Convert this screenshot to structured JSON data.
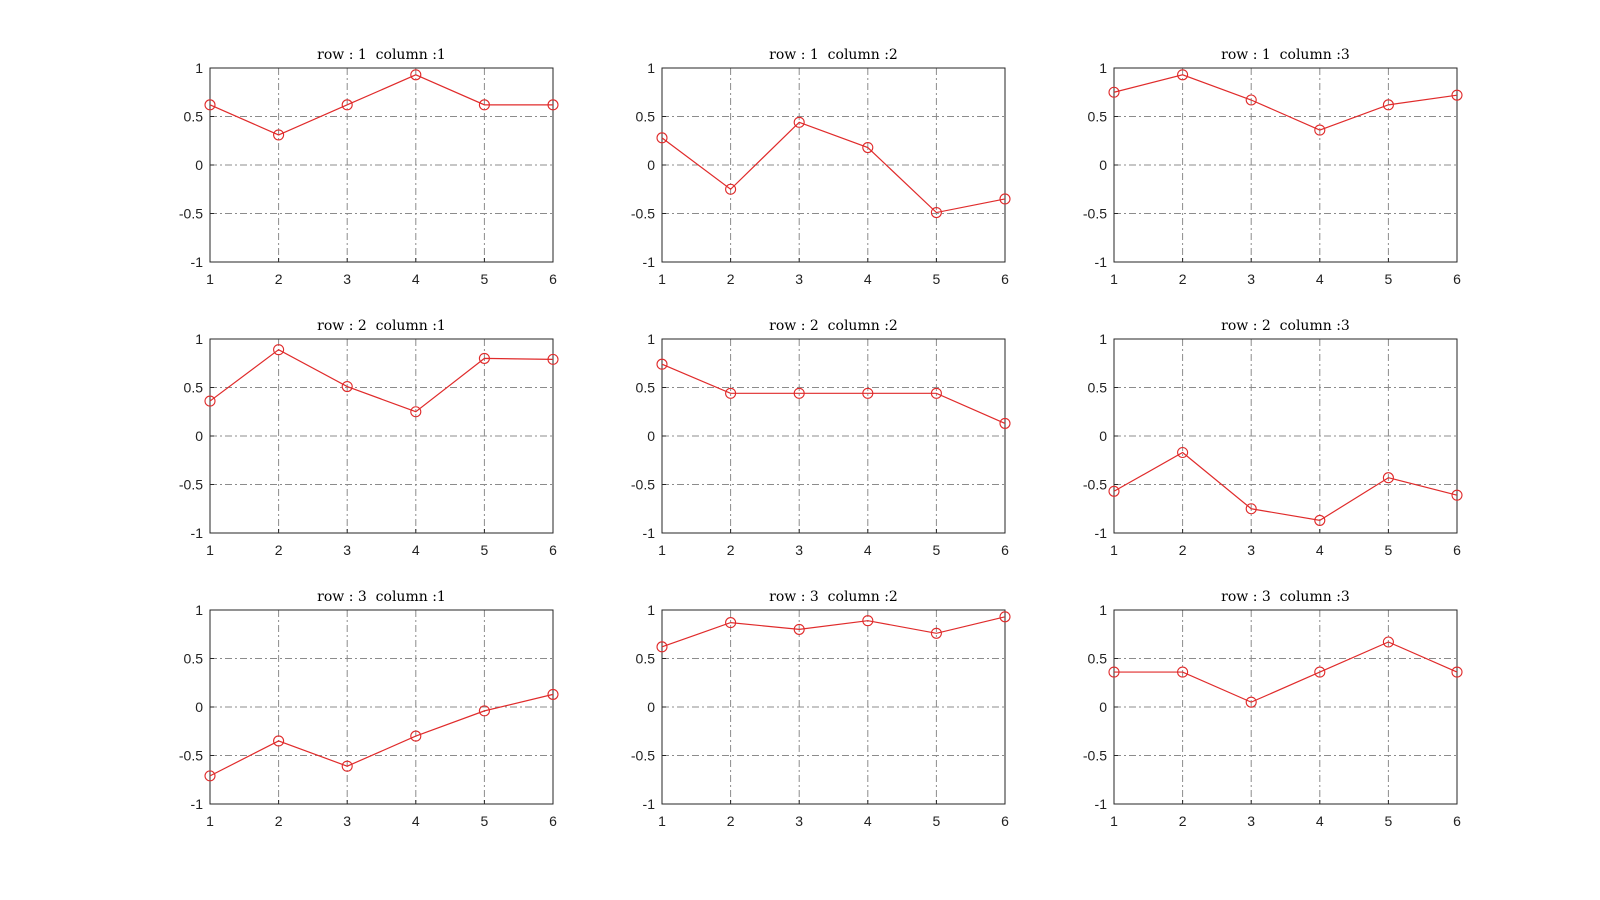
{
  "figure": {
    "series_color": "#e02b2b",
    "grid_color": "#8c8c8c",
    "axes_color": "#262626"
  },
  "chart_data": [
    {
      "type": "line",
      "title": "row : 1  column :1",
      "x": [
        1,
        2,
        3,
        4,
        5,
        6
      ],
      "values": [
        0.62,
        0.31,
        0.62,
        0.93,
        0.62,
        0.62
      ],
      "xlim": [
        1,
        6
      ],
      "ylim": [
        -1,
        1
      ],
      "xticks": [
        "1",
        "2",
        "3",
        "4",
        "5",
        "6"
      ],
      "yticks": [
        "1",
        "0.5",
        "0",
        "-0.5",
        "-1"
      ],
      "marker": "circle",
      "grid": true
    },
    {
      "type": "line",
      "title": "row : 2  column :1",
      "x": [
        1,
        2,
        3,
        4,
        5,
        6
      ],
      "values": [
        0.36,
        0.89,
        0.51,
        0.25,
        0.8,
        0.79
      ],
      "xlim": [
        1,
        6
      ],
      "ylim": [
        -1,
        1
      ],
      "xticks": [
        "1",
        "2",
        "3",
        "4",
        "5",
        "6"
      ],
      "yticks": [
        "1",
        "0.5",
        "0",
        "-0.5",
        "-1"
      ],
      "marker": "circle",
      "grid": true
    },
    {
      "type": "line",
      "title": "row : 3  column :1",
      "x": [
        1,
        2,
        3,
        4,
        5,
        6
      ],
      "values": [
        -0.71,
        -0.35,
        -0.61,
        -0.3,
        -0.04,
        0.13
      ],
      "xlim": [
        1,
        6
      ],
      "ylim": [
        -1,
        1
      ],
      "xticks": [
        "1",
        "2",
        "3",
        "4",
        "5",
        "6"
      ],
      "yticks": [
        "1",
        "0.5",
        "0",
        "-0.5",
        "-1"
      ],
      "marker": "circle",
      "grid": true
    },
    {
      "type": "line",
      "title": "row : 1  column :2",
      "x": [
        1,
        2,
        3,
        4,
        5,
        6
      ],
      "values": [
        0.28,
        -0.25,
        0.44,
        0.18,
        -0.49,
        -0.35
      ],
      "xlim": [
        1,
        6
      ],
      "ylim": [
        -1,
        1
      ],
      "xticks": [
        "1",
        "2",
        "3",
        "4",
        "5",
        "6"
      ],
      "yticks": [
        "1",
        "0.5",
        "0",
        "-0.5",
        "-1"
      ],
      "marker": "circle",
      "grid": true
    },
    {
      "type": "line",
      "title": "row : 2  column :2",
      "x": [
        1,
        2,
        3,
        4,
        5,
        6
      ],
      "values": [
        0.74,
        0.44,
        0.44,
        0.44,
        0.44,
        0.13
      ],
      "xlim": [
        1,
        6
      ],
      "ylim": [
        -1,
        1
      ],
      "xticks": [
        "1",
        "2",
        "3",
        "4",
        "5",
        "6"
      ],
      "yticks": [
        "1",
        "0.5",
        "0",
        "-0.5",
        "-1"
      ],
      "marker": "circle",
      "grid": true
    },
    {
      "type": "line",
      "title": "row : 3  column :2",
      "x": [
        1,
        2,
        3,
        4,
        5,
        6
      ],
      "values": [
        0.62,
        0.87,
        0.8,
        0.89,
        0.76,
        0.93
      ],
      "xlim": [
        1,
        6
      ],
      "ylim": [
        -1,
        1
      ],
      "xticks": [
        "1",
        "2",
        "3",
        "4",
        "5",
        "6"
      ],
      "yticks": [
        "1",
        "0.5",
        "0",
        "-0.5",
        "-1"
      ],
      "marker": "circle",
      "grid": true
    },
    {
      "type": "line",
      "title": "row : 1  column :3",
      "x": [
        1,
        2,
        3,
        4,
        5,
        6
      ],
      "values": [
        0.75,
        0.93,
        0.67,
        0.36,
        0.62,
        0.72
      ],
      "xlim": [
        1,
        6
      ],
      "ylim": [
        -1,
        1
      ],
      "xticks": [
        "1",
        "2",
        "3",
        "4",
        "5",
        "6"
      ],
      "yticks": [
        "1",
        "0.5",
        "0",
        "-0.5",
        "-1"
      ],
      "marker": "circle",
      "grid": true
    },
    {
      "type": "line",
      "title": "row : 2  column :3",
      "x": [
        1,
        2,
        3,
        4,
        5,
        6
      ],
      "values": [
        -0.57,
        -0.17,
        -0.75,
        -0.87,
        -0.43,
        -0.61
      ],
      "xlim": [
        1,
        6
      ],
      "ylim": [
        -1,
        1
      ],
      "xticks": [
        "1",
        "2",
        "3",
        "4",
        "5",
        "6"
      ],
      "yticks": [
        "1",
        "0.5",
        "0",
        "-0.5",
        "-1"
      ],
      "marker": "circle",
      "grid": true
    },
    {
      "type": "line",
      "title": "row : 3  column :3",
      "x": [
        1,
        2,
        3,
        4,
        5,
        6
      ],
      "values": [
        0.36,
        0.36,
        0.05,
        0.36,
        0.67,
        0.36
      ],
      "xlim": [
        1,
        6
      ],
      "ylim": [
        -1,
        1
      ],
      "xticks": [
        "1",
        "2",
        "3",
        "4",
        "5",
        "6"
      ],
      "yticks": [
        "1",
        "0.5",
        "0",
        "-0.5",
        "-1"
      ],
      "marker": "circle",
      "grid": true
    }
  ]
}
